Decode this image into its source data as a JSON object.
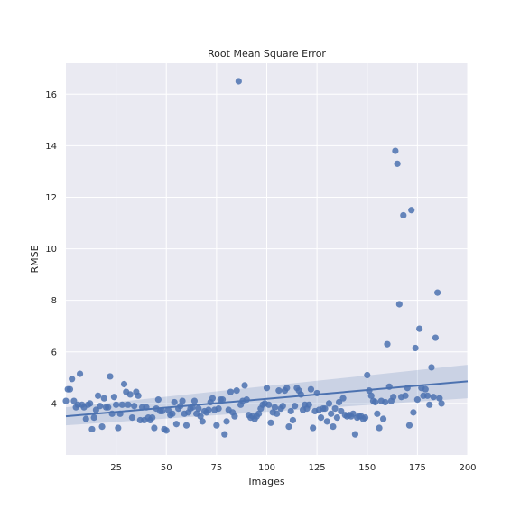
{
  "chart_data": {
    "type": "scatter",
    "title": "Root Mean Square Error",
    "xlabel": "Images",
    "ylabel": "RMSE",
    "xlim": [
      0,
      200
    ],
    "ylim": [
      2.0,
      17.2
    ],
    "xticks": [
      25,
      50,
      75,
      100,
      125,
      150,
      175,
      200
    ],
    "yticks": [
      4,
      6,
      8,
      10,
      12,
      14,
      16
    ],
    "grid": true,
    "regression": {
      "intercept": 3.5,
      "slope": 0.0068,
      "ci_low_at_max": 4.2,
      "ci_high_at_max": 5.5,
      "ci_low_at_min": 3.15,
      "ci_high_at_min": 3.85
    },
    "colors": {
      "points": "#4c72b0",
      "background": "#eaeaf2",
      "grid": "#ffffff",
      "band": "#4c72b0"
    },
    "points": [
      [
        0,
        4.1
      ],
      [
        1,
        4.55
      ],
      [
        2,
        4.55
      ],
      [
        3,
        4.95
      ],
      [
        4,
        4.1
      ],
      [
        5,
        3.85
      ],
      [
        6,
        3.95
      ],
      [
        7,
        5.15
      ],
      [
        8,
        3.95
      ],
      [
        9,
        3.85
      ],
      [
        10,
        3.4
      ],
      [
        11,
        3.95
      ],
      [
        12,
        4.0
      ],
      [
        13,
        3.0
      ],
      [
        14,
        3.45
      ],
      [
        15,
        3.75
      ],
      [
        16,
        4.3
      ],
      [
        17,
        3.9
      ],
      [
        18,
        3.1
      ],
      [
        19,
        4.2
      ],
      [
        20,
        3.85
      ],
      [
        21,
        3.85
      ],
      [
        22,
        5.05
      ],
      [
        23,
        3.6
      ],
      [
        24,
        4.25
      ],
      [
        25,
        3.95
      ],
      [
        26,
        3.05
      ],
      [
        27,
        3.6
      ],
      [
        28,
        3.95
      ],
      [
        29,
        4.75
      ],
      [
        30,
        4.45
      ],
      [
        31,
        3.95
      ],
      [
        32,
        4.35
      ],
      [
        33,
        3.45
      ],
      [
        34,
        3.9
      ],
      [
        35,
        4.45
      ],
      [
        36,
        4.3
      ],
      [
        37,
        3.35
      ],
      [
        38,
        3.85
      ],
      [
        39,
        3.35
      ],
      [
        40,
        3.85
      ],
      [
        41,
        3.45
      ],
      [
        42,
        3.35
      ],
      [
        43,
        3.45
      ],
      [
        44,
        3.05
      ],
      [
        45,
        3.8
      ],
      [
        46,
        4.15
      ],
      [
        47,
        3.7
      ],
      [
        48,
        3.7
      ],
      [
        49,
        3.0
      ],
      [
        50,
        2.95
      ],
      [
        51,
        3.75
      ],
      [
        52,
        3.55
      ],
      [
        53,
        3.6
      ],
      [
        54,
        4.05
      ],
      [
        55,
        3.2
      ],
      [
        56,
        3.8
      ],
      [
        57,
        3.9
      ],
      [
        58,
        4.1
      ],
      [
        59,
        3.6
      ],
      [
        60,
        3.15
      ],
      [
        61,
        3.65
      ],
      [
        62,
        3.8
      ],
      [
        63,
        3.85
      ],
      [
        64,
        4.1
      ],
      [
        65,
        3.6
      ],
      [
        66,
        3.8
      ],
      [
        67,
        3.5
      ],
      [
        68,
        3.3
      ],
      [
        69,
        3.7
      ],
      [
        70,
        3.65
      ],
      [
        71,
        3.75
      ],
      [
        72,
        4.05
      ],
      [
        73,
        4.2
      ],
      [
        74,
        3.75
      ],
      [
        75,
        3.15
      ],
      [
        76,
        3.8
      ],
      [
        77,
        4.15
      ],
      [
        78,
        4.15
      ],
      [
        79,
        2.8
      ],
      [
        80,
        3.3
      ],
      [
        81,
        3.75
      ],
      [
        82,
        4.45
      ],
      [
        83,
        3.65
      ],
      [
        84,
        3.5
      ],
      [
        85,
        4.5
      ],
      [
        86,
        16.5
      ],
      [
        87,
        3.95
      ],
      [
        88,
        4.1
      ],
      [
        89,
        4.7
      ],
      [
        90,
        4.15
      ],
      [
        91,
        3.55
      ],
      [
        92,
        3.45
      ],
      [
        93,
        3.5
      ],
      [
        94,
        3.4
      ],
      [
        95,
        3.5
      ],
      [
        96,
        3.6
      ],
      [
        97,
        3.8
      ],
      [
        98,
        3.95
      ],
      [
        99,
        4.0
      ],
      [
        100,
        4.6
      ],
      [
        101,
        3.95
      ],
      [
        102,
        3.25
      ],
      [
        103,
        3.65
      ],
      [
        104,
        3.85
      ],
      [
        105,
        3.6
      ],
      [
        106,
        4.5
      ],
      [
        107,
        3.8
      ],
      [
        108,
        3.9
      ],
      [
        109,
        4.5
      ],
      [
        110,
        4.6
      ],
      [
        111,
        3.1
      ],
      [
        112,
        3.7
      ],
      [
        113,
        3.35
      ],
      [
        114,
        3.9
      ],
      [
        115,
        4.6
      ],
      [
        116,
        4.5
      ],
      [
        117,
        4.35
      ],
      [
        118,
        3.75
      ],
      [
        119,
        3.95
      ],
      [
        120,
        3.8
      ],
      [
        121,
        3.95
      ],
      [
        122,
        4.55
      ],
      [
        123,
        3.05
      ],
      [
        124,
        3.7
      ],
      [
        125,
        4.4
      ],
      [
        126,
        3.75
      ],
      [
        127,
        3.45
      ],
      [
        128,
        3.8
      ],
      [
        129,
        3.8
      ],
      [
        130,
        3.3
      ],
      [
        131,
        4.0
      ],
      [
        132,
        3.6
      ],
      [
        133,
        3.1
      ],
      [
        134,
        3.8
      ],
      [
        135,
        3.45
      ],
      [
        136,
        4.05
      ],
      [
        137,
        3.7
      ],
      [
        138,
        4.2
      ],
      [
        139,
        3.55
      ],
      [
        140,
        3.5
      ],
      [
        141,
        3.55
      ],
      [
        142,
        3.5
      ],
      [
        143,
        3.6
      ],
      [
        144,
        2.8
      ],
      [
        145,
        3.45
      ],
      [
        146,
        3.5
      ],
      [
        147,
        3.5
      ],
      [
        148,
        3.4
      ],
      [
        149,
        3.45
      ],
      [
        150,
        5.1
      ],
      [
        151,
        4.5
      ],
      [
        152,
        4.3
      ],
      [
        153,
        4.1
      ],
      [
        154,
        4.05
      ],
      [
        155,
        3.6
      ],
      [
        156,
        3.05
      ],
      [
        157,
        4.1
      ],
      [
        158,
        3.4
      ],
      [
        159,
        4.05
      ],
      [
        160,
        6.3
      ],
      [
        161,
        4.65
      ],
      [
        162,
        4.1
      ],
      [
        163,
        4.25
      ],
      [
        164,
        13.8
      ],
      [
        165,
        13.3
      ],
      [
        166,
        7.85
      ],
      [
        167,
        4.25
      ],
      [
        168,
        11.3
      ],
      [
        169,
        4.3
      ],
      [
        170,
        4.6
      ],
      [
        171,
        3.15
      ],
      [
        172,
        11.5
      ],
      [
        173,
        3.65
      ],
      [
        174,
        6.15
      ],
      [
        175,
        4.15
      ],
      [
        176,
        6.9
      ],
      [
        177,
        4.6
      ],
      [
        178,
        4.3
      ],
      [
        179,
        4.55
      ],
      [
        180,
        4.3
      ],
      [
        181,
        3.95
      ],
      [
        182,
        5.4
      ],
      [
        183,
        4.25
      ],
      [
        184,
        6.55
      ],
      [
        185,
        8.3
      ],
      [
        186,
        4.2
      ],
      [
        187,
        4.0
      ]
    ]
  }
}
